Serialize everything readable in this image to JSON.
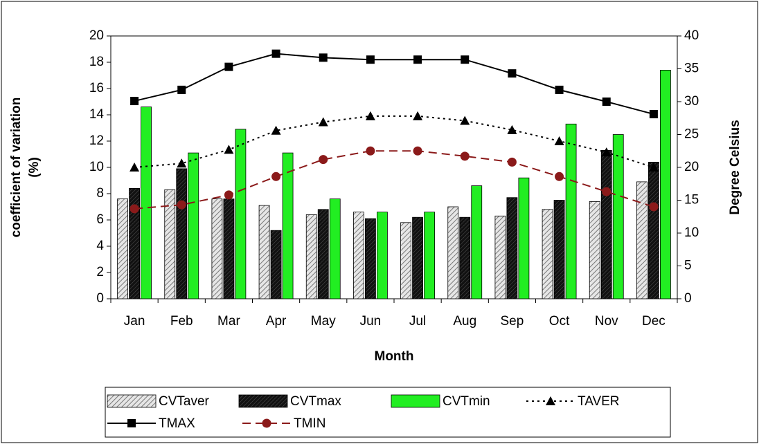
{
  "chart_data": {
    "type": "bar_line",
    "xlabel": "Month",
    "ylabel": [
      "coefficient of variation",
      "(%)"
    ],
    "y2label": "Degree Celsius",
    "categories": [
      "Jan",
      "Feb",
      "Mar",
      "Apr",
      "May",
      "Jun",
      "Jul",
      "Aug",
      "Sep",
      "Oct",
      "Nov",
      "Dec"
    ],
    "ylim": [
      0,
      20
    ],
    "yticks": [
      0,
      2,
      4,
      6,
      8,
      10,
      12,
      14,
      16,
      18,
      20
    ],
    "y2lim": [
      0,
      40
    ],
    "y2ticks": [
      0,
      5,
      10,
      15,
      20,
      25,
      30,
      35,
      40
    ],
    "series": [
      {
        "name": "CVTaver",
        "kind": "bar",
        "color": "#c8c8c8",
        "pattern": "hatch-light",
        "values": [
          7.6,
          8.3,
          7.6,
          7.1,
          6.4,
          6.6,
          5.8,
          7.0,
          6.3,
          6.8,
          7.4,
          8.9
        ]
      },
      {
        "name": "CVTmax",
        "kind": "bar",
        "color": "#111111",
        "pattern": "hatch-dark",
        "values": [
          8.4,
          9.9,
          7.6,
          5.2,
          6.8,
          6.1,
          6.2,
          6.2,
          7.7,
          7.5,
          11.3,
          10.4
        ]
      },
      {
        "name": "CVTmin",
        "kind": "bar",
        "color": "#22ee22",
        "values": [
          14.6,
          11.1,
          12.9,
          11.1,
          7.6,
          6.6,
          6.6,
          8.6,
          9.2,
          13.3,
          12.5,
          17.4
        ]
      },
      {
        "name": "TAVER",
        "kind": "line",
        "axis": "y2",
        "color": "#000000",
        "dash": "dotted",
        "marker": "triangle",
        "values": [
          20.0,
          20.6,
          22.7,
          25.6,
          26.9,
          27.8,
          27.8,
          27.1,
          25.7,
          24.0,
          22.3,
          20.0
        ]
      },
      {
        "name": "TMAX",
        "kind": "line",
        "axis": "y2",
        "color": "#000000",
        "dash": "solid",
        "marker": "square",
        "values": [
          30.1,
          31.8,
          35.3,
          37.3,
          36.7,
          36.4,
          36.4,
          36.4,
          34.3,
          31.8,
          30.0,
          28.1
        ]
      },
      {
        "name": "TMIN",
        "kind": "line",
        "axis": "y2",
        "color": "#8b1a1a",
        "dash": "dashed",
        "marker": "circle",
        "values": [
          13.7,
          14.3,
          15.8,
          18.6,
          21.2,
          22.5,
          22.5,
          21.7,
          20.8,
          18.6,
          16.3,
          14.0
        ]
      }
    ]
  }
}
